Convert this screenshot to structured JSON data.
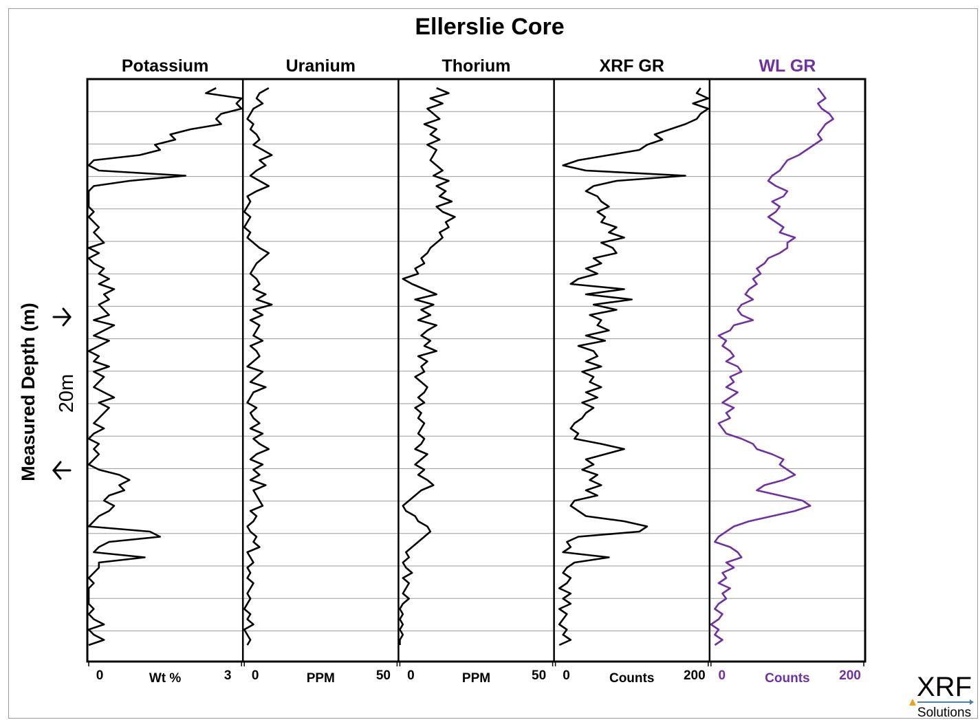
{
  "chart_data": {
    "type": "line",
    "title": "Ellerslie Core",
    "ylabel": "Measured Depth (m)",
    "scale_bar_label": "20m",
    "grid": true,
    "panels": [
      {
        "name": "Potassium",
        "unit": "Wt %",
        "xmin_label": "0",
        "xmax_label": "3",
        "xlim": [
          0,
          3
        ],
        "color": "#000000",
        "values": [
          2.5,
          2.3,
          3.0,
          2.9,
          3.0,
          2.6,
          2.5,
          2.6,
          2.0,
          1.6,
          1.7,
          1.3,
          1.4,
          1.0,
          0.1,
          0.0,
          0.2,
          1.9,
          0.8,
          0.1,
          0.0,
          0.0,
          0.0,
          0.0,
          0.1,
          0.0,
          0.1,
          0.2,
          0.1,
          0.2,
          0.3,
          0.0,
          0.2,
          0.0,
          0.1,
          0.3,
          0.2,
          0.4,
          0.2,
          0.5,
          0.3,
          0.4,
          0.2,
          0.3,
          0.4,
          0.1,
          0.5,
          0.3,
          0.1,
          0.4,
          0.2,
          0.0,
          0.2,
          0.1,
          0.4,
          0.1,
          0.3,
          0.2,
          0.1,
          0.3,
          0.5,
          0.2,
          0.4,
          0.3,
          0.2,
          0.1,
          0.3,
          0.1,
          0.0,
          0.2,
          0.1,
          0.2,
          0.1,
          0.0,
          0.2,
          0.6,
          0.8,
          0.6,
          0.7,
          0.4,
          0.3,
          0.5,
          0.4,
          0.2,
          0.1,
          0.0,
          1.2,
          1.4,
          0.4,
          0.2,
          0.1,
          1.1,
          0.2,
          0.2,
          0.1,
          0.0,
          0.1,
          0.0,
          0.0,
          0.0,
          0.0,
          0.1,
          0.0,
          0.1,
          0.3,
          0.0,
          0.1,
          0.3,
          0.0
        ]
      },
      {
        "name": "Uranium",
        "unit": "PPM",
        "xmin_label": "0",
        "xmax_label": "50",
        "xlim": [
          0,
          50
        ],
        "color": "#000000",
        "values": [
          8,
          5,
          4,
          6,
          3,
          2,
          1,
          3,
          2,
          4,
          5,
          3,
          6,
          9,
          5,
          7,
          4,
          2,
          5,
          8,
          4,
          1,
          2,
          1,
          0,
          2,
          1,
          0,
          2,
          1,
          3,
          5,
          8,
          6,
          4,
          3,
          2,
          4,
          5,
          3,
          7,
          4,
          9,
          3,
          6,
          2,
          5,
          4,
          3,
          6,
          2,
          4,
          5,
          3,
          1,
          6,
          4,
          2,
          7,
          3,
          2,
          1,
          4,
          2,
          3,
          5,
          2,
          6,
          3,
          5,
          8,
          4,
          2,
          6,
          3,
          5,
          2,
          7,
          3,
          4,
          5,
          6,
          2,
          4,
          3,
          1,
          2,
          4,
          3,
          5,
          1,
          2,
          3,
          1,
          2,
          1,
          3,
          2,
          1,
          2,
          1,
          0,
          2,
          1,
          3,
          0,
          1,
          2,
          1
        ]
      },
      {
        "name": "Thorium",
        "unit": "PPM",
        "xmin_label": "0",
        "xmax_label": "50",
        "xlim": [
          0,
          50
        ],
        "color": "#000000",
        "values": [
          12,
          16,
          10,
          14,
          9,
          11,
          13,
          8,
          12,
          10,
          13,
          9,
          12,
          11,
          10,
          12,
          14,
          11,
          16,
          12,
          15,
          13,
          17,
          12,
          14,
          18,
          15,
          16,
          13,
          14,
          12,
          10,
          9,
          7,
          8,
          5,
          6,
          1,
          4,
          8,
          12,
          5,
          11,
          7,
          10,
          6,
          12,
          9,
          7,
          10,
          8,
          12,
          6,
          9,
          7,
          8,
          5,
          7,
          9,
          8,
          6,
          8,
          5,
          7,
          6,
          8,
          7,
          6,
          8,
          7,
          5,
          9,
          7,
          5,
          8,
          6,
          9,
          11,
          7,
          5,
          3,
          1,
          2,
          5,
          6,
          9,
          10,
          8,
          6,
          4,
          2,
          3,
          1,
          2,
          4,
          1,
          3,
          2,
          1,
          3,
          1,
          0,
          1,
          0,
          1,
          0,
          1,
          0,
          0
        ]
      },
      {
        "name": "XRF GR",
        "unit": "Counts",
        "xmin_label": "0",
        "xmax_label": "200",
        "xlim": [
          0,
          200
        ],
        "color": "#000000",
        "values": [
          190,
          185,
          200,
          180,
          200,
          190,
          185,
          170,
          150,
          130,
          140,
          120,
          110,
          70,
          30,
          10,
          40,
          170,
          80,
          50,
          40,
          55,
          60,
          70,
          55,
          65,
          60,
          80,
          70,
          90,
          60,
          75,
          80,
          50,
          60,
          40,
          55,
          30,
          20,
          90,
          40,
          100,
          50,
          80,
          45,
          60,
          55,
          70,
          40,
          65,
          30,
          50,
          55,
          40,
          60,
          35,
          50,
          45,
          60,
          40,
          55,
          35,
          50,
          40,
          35,
          25,
          20,
          30,
          25,
          60,
          90,
          65,
          40,
          50,
          35,
          55,
          45,
          60,
          40,
          55,
          25,
          20,
          30,
          40,
          90,
          120,
          110,
          30,
          15,
          20,
          10,
          70,
          25,
          15,
          10,
          20,
          15,
          5,
          20,
          10,
          20,
          5,
          15,
          10,
          5,
          15,
          10,
          20,
          5
        ]
      },
      {
        "name": "WL GR",
        "unit": "Counts",
        "xmin_label": "0",
        "xmax_label": "200",
        "xlim": [
          0,
          200
        ],
        "color": "#7030A0",
        "values": [
          140,
          145,
          150,
          140,
          145,
          155,
          160,
          150,
          145,
          140,
          145,
          135,
          125,
          115,
          100,
          95,
          90,
          80,
          75,
          85,
          100,
          95,
          80,
          90,
          85,
          75,
          85,
          95,
          90,
          110,
          100,
          100,
          90,
          75,
          70,
          60,
          65,
          55,
          60,
          50,
          45,
          55,
          40,
          35,
          40,
          55,
          30,
          25,
          10,
          20,
          15,
          25,
          30,
          20,
          35,
          40,
          25,
          30,
          20,
          35,
          25,
          15,
          30,
          20,
          25,
          10,
          15,
          20,
          40,
          55,
          60,
          80,
          95,
          90,
          100,
          110,
          95,
          70,
          60,
          90,
          120,
          130,
          110,
          80,
          50,
          30,
          20,
          10,
          5,
          25,
          35,
          40,
          20,
          30,
          15,
          20,
          10,
          25,
          15,
          20,
          10,
          5,
          15,
          10,
          0,
          10,
          5,
          15,
          5
        ]
      }
    ]
  },
  "logo": {
    "text": "XRF",
    "subtext": "Solutions"
  }
}
